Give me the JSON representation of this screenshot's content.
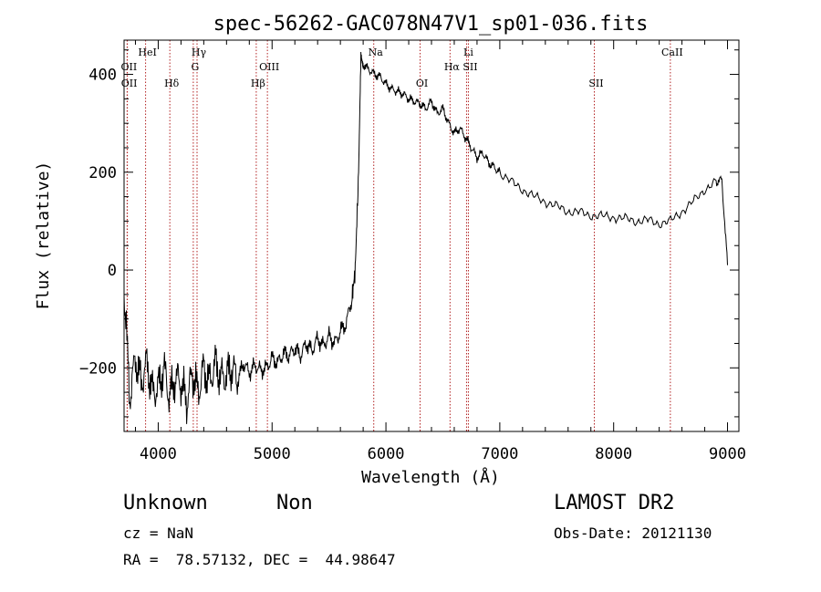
{
  "chart_data": {
    "type": "line",
    "title": "spec-56262-GAC078N47V1_sp01-036.fits",
    "xlabel": "Wavelength (Å)",
    "ylabel": "Flux (relative)",
    "xlim": [
      3700,
      9100
    ],
    "ylim": [
      -330,
      470
    ],
    "x_ticks": [
      4000,
      5000,
      6000,
      7000,
      8000,
      9000
    ],
    "y_ticks": [
      -200,
      0,
      200,
      400
    ],
    "grid": false,
    "line_color": "#000000",
    "marker_color": "#b22222",
    "series": [
      {
        "x": [
          3700,
          3750,
          3800,
          3850,
          3900,
          3950,
          4000,
          4050,
          4100,
          4150,
          4200,
          4250,
          4300,
          4350,
          4400,
          4450,
          4500,
          4550,
          4600,
          4650,
          4700,
          4750,
          4800,
          4850,
          4900,
          4950,
          5000,
          5050,
          5100,
          5150,
          5200,
          5250,
          5300,
          5350,
          5400,
          5450,
          5500,
          5550,
          5600,
          5650,
          5700,
          5730,
          5760,
          5780,
          5800,
          5850,
          5900,
          5950,
          6000,
          6050,
          6100,
          6150,
          6200,
          6250,
          6300,
          6350,
          6400,
          6450,
          6500,
          6550,
          6600,
          6650,
          6700,
          6750,
          6800,
          6850,
          6900,
          6950,
          7000,
          7100,
          7200,
          7300,
          7400,
          7500,
          7600,
          7700,
          7800,
          7900,
          8000,
          8100,
          8200,
          8300,
          8400,
          8500,
          8600,
          8700,
          8800,
          8900,
          8950,
          9000
        ],
        "y": [
          -40,
          -260,
          -180,
          -230,
          -190,
          -250,
          -240,
          -200,
          -260,
          -220,
          -230,
          -270,
          -210,
          -250,
          -200,
          -230,
          -190,
          -220,
          -215,
          -200,
          -225,
          -190,
          -210,
          -195,
          -205,
          -200,
          -180,
          -190,
          -170,
          -175,
          -160,
          -175,
          -150,
          -165,
          -140,
          -155,
          -135,
          -150,
          -125,
          -110,
          -60,
          0,
          200,
          440,
          420,
          410,
          400,
          395,
          380,
          370,
          365,
          360,
          350,
          345,
          340,
          330,
          345,
          320,
          330,
          300,
          280,
          290,
          270,
          250,
          230,
          240,
          220,
          210,
          200,
          180,
          165,
          150,
          140,
          130,
          120,
          118,
          112,
          110,
          108,
          105,
          100,
          102,
          95,
          100,
          120,
          140,
          165,
          180,
          185,
          10
        ]
      }
    ],
    "lines": [
      {
        "x": 3727,
        "label": "OII",
        "row": 1
      },
      {
        "x": 3729,
        "label": "OII",
        "row": 2
      },
      {
        "x": 3889,
        "label": "HeI",
        "row": 0
      },
      {
        "x": 4102,
        "label": "Hδ",
        "row": 2
      },
      {
        "x": 4308,
        "label": "G",
        "row": 1
      },
      {
        "x": 4341,
        "label": "Hγ",
        "row": 0
      },
      {
        "x": 4861,
        "label": "Hβ",
        "row": 2
      },
      {
        "x": 4959,
        "label": "OIII",
        "row": 1
      },
      {
        "x": 5893,
        "label": "Na",
        "row": 0
      },
      {
        "x": 6300,
        "label": "OI",
        "row": 2
      },
      {
        "x": 6563,
        "label": "Hα",
        "row": 1
      },
      {
        "x": 6708,
        "label": "Li",
        "row": 0
      },
      {
        "x": 6724,
        "label": "SII",
        "row": 1
      },
      {
        "x": 7830,
        "label": "SII",
        "row": 2
      },
      {
        "x": 8498,
        "label": "CaII",
        "row": 0
      }
    ]
  },
  "info": {
    "object_class": "Unknown",
    "subclass": "Non",
    "cz": "cz = NaN",
    "coords": "RA =  78.57132, DEC =  44.98647",
    "survey": "LAMOST DR2",
    "obs_date": "Obs-Date: 20121130"
  }
}
